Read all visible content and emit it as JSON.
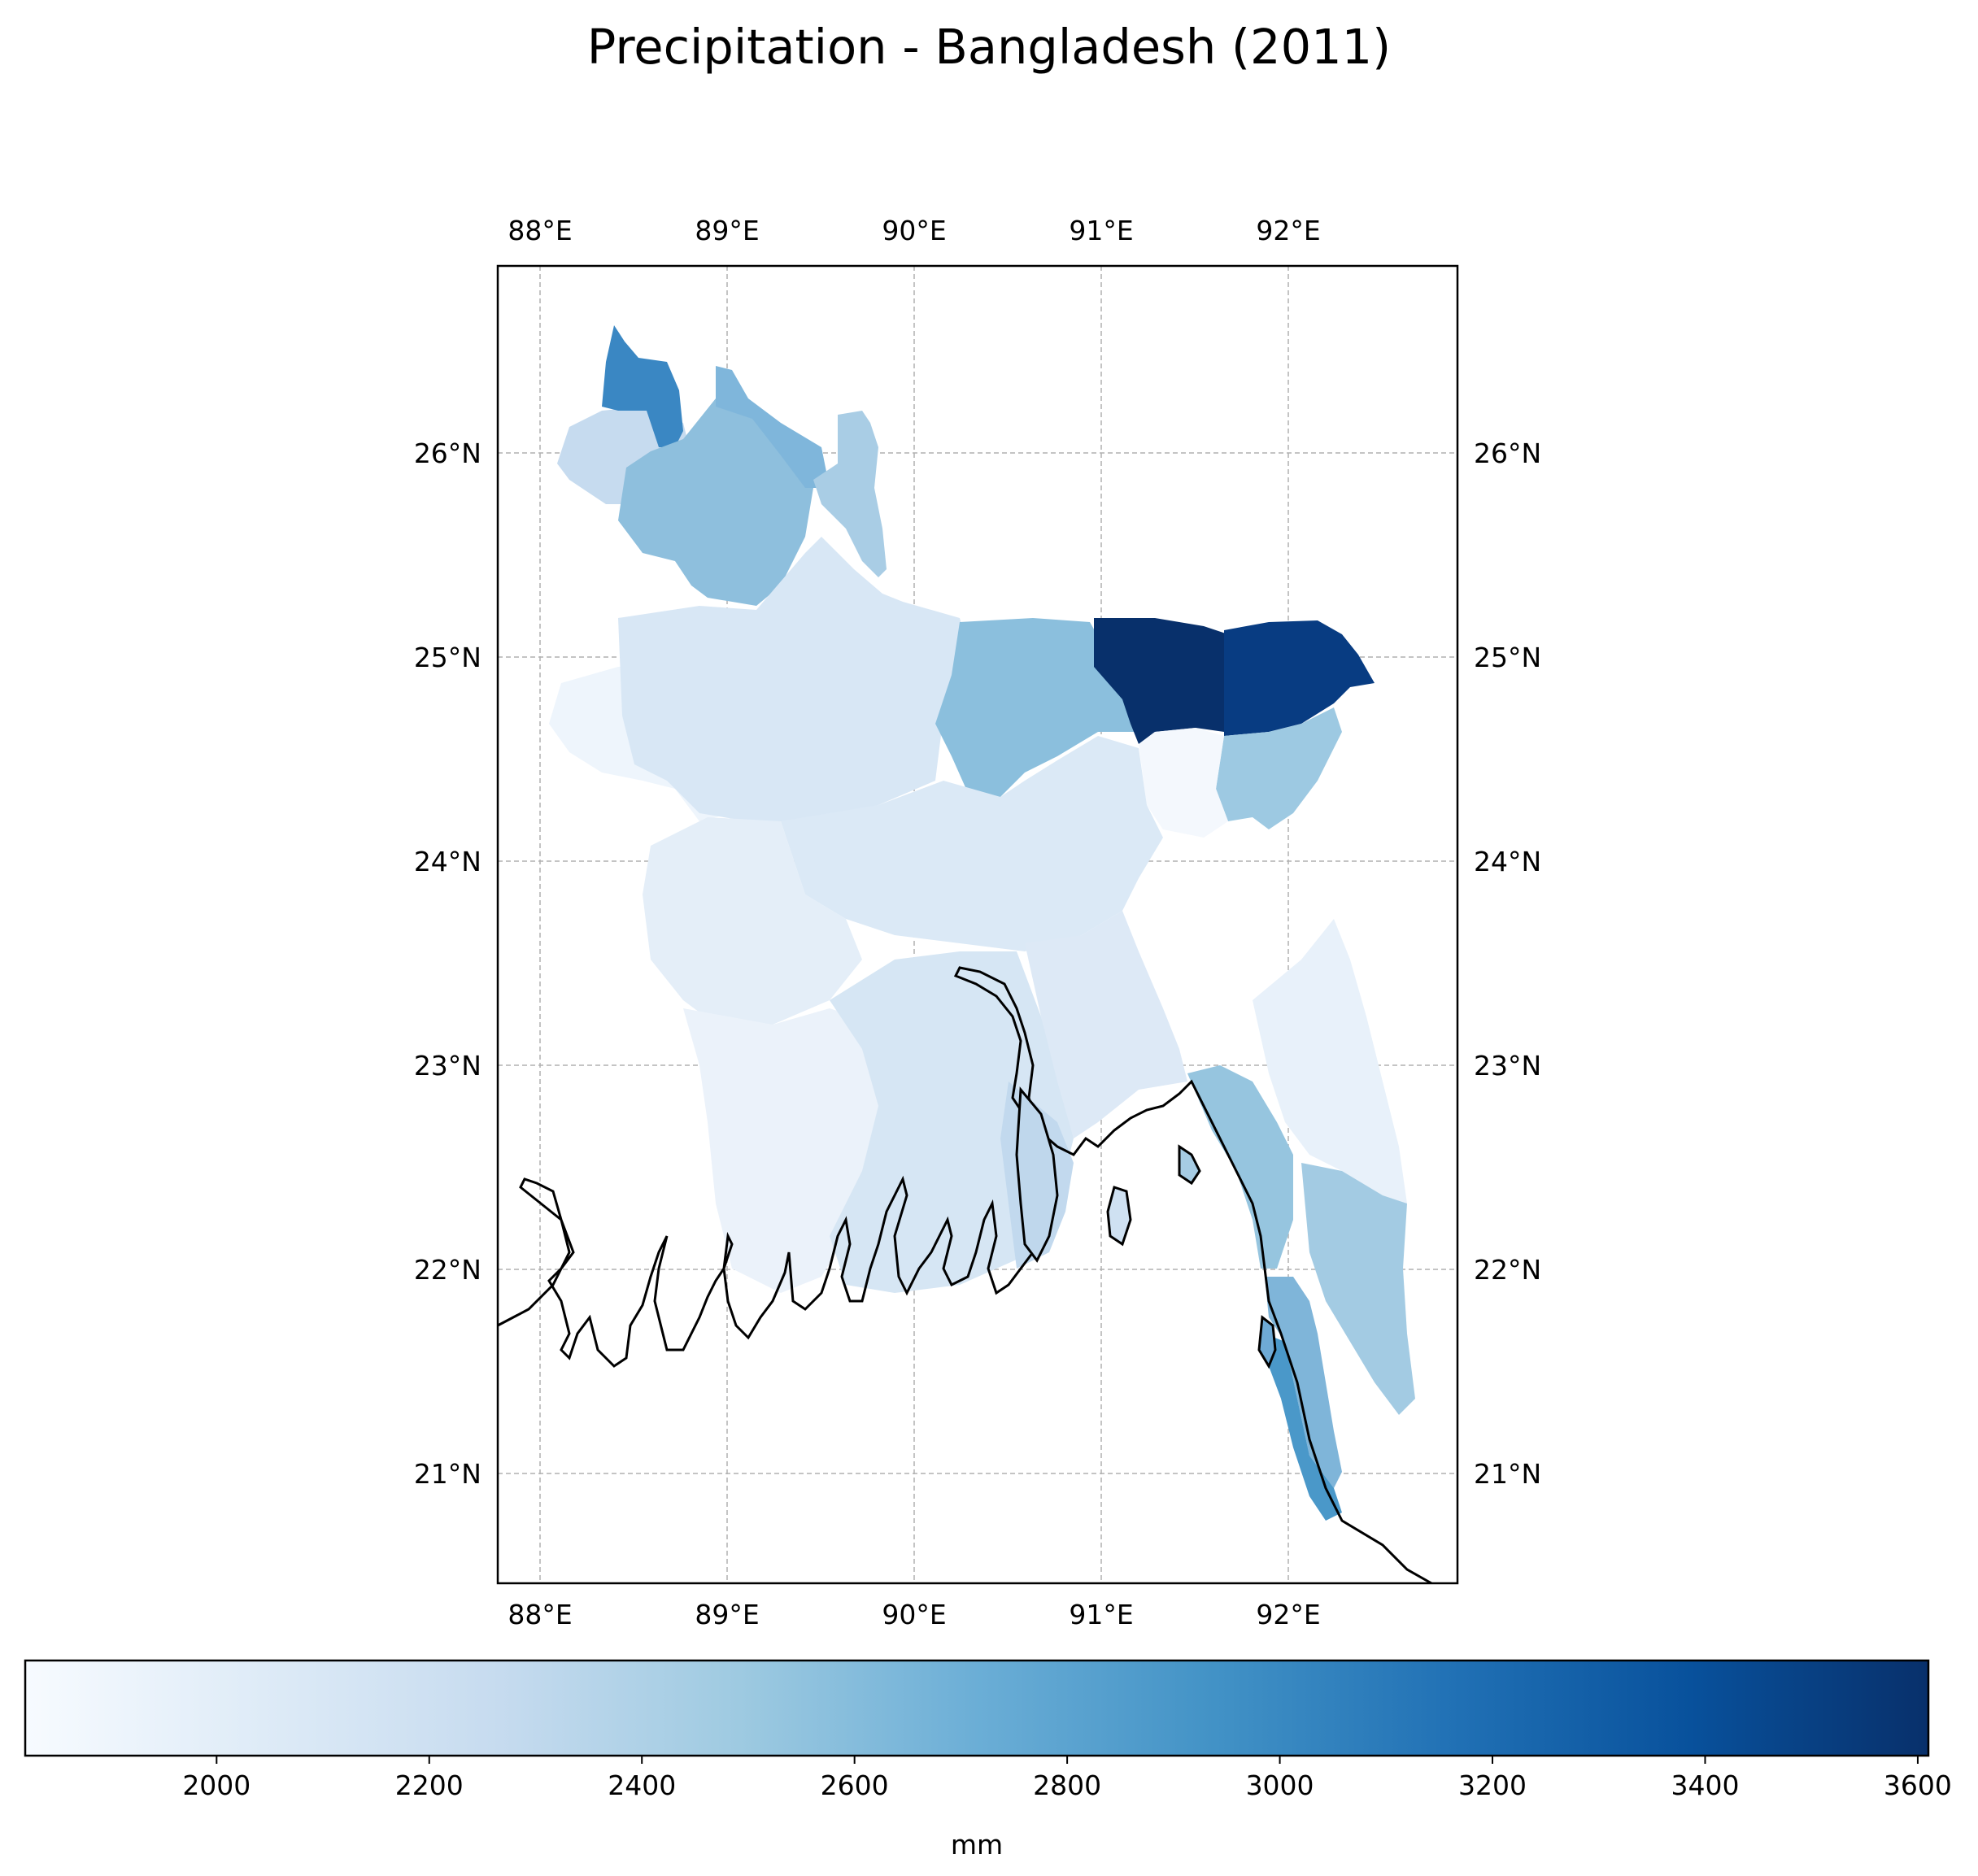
{
  "title": "Precipitation - Bangladesh (2011)",
  "map": {
    "lon_ticks": [
      "88°E",
      "89°E",
      "90°E",
      "91°E",
      "92°E"
    ],
    "lat_ticks": [
      "26°N",
      "25°N",
      "24°N",
      "23°N",
      "22°N",
      "21°N"
    ],
    "gridlines": true
  },
  "colorbar": {
    "label": "mm",
    "colormap": "Blues",
    "range": [
      1820,
      3610
    ],
    "ticks": [
      "2000",
      "2200",
      "2400",
      "2600",
      "2800",
      "3000",
      "3200",
      "3400",
      "3600"
    ],
    "tick_values": [
      2000,
      2200,
      2400,
      2600,
      2800,
      3000,
      3200,
      3400,
      3600
    ],
    "stops": [
      "#f7fbff",
      "#deebf7",
      "#c6dbef",
      "#9ecae1",
      "#6baed6",
      "#4292c6",
      "#2171b5",
      "#08519c",
      "#08306b"
    ]
  }
}
